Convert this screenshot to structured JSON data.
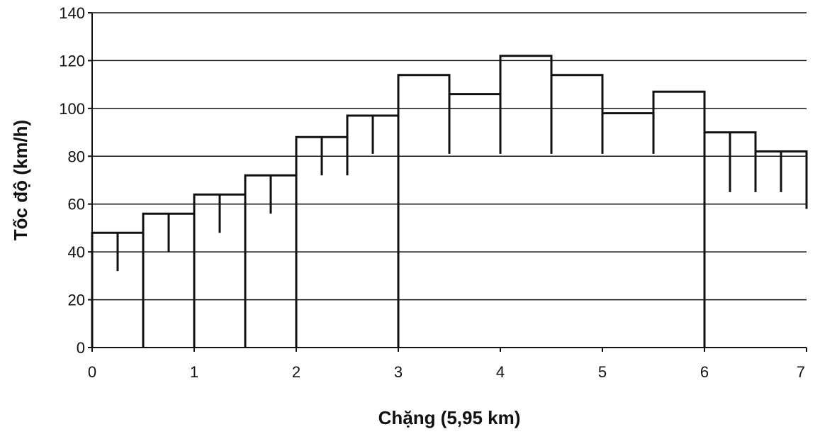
{
  "chart_data": {
    "type": "line",
    "title": "",
    "xlabel": "Chặng (5,95 km)",
    "ylabel": "Tốc độ (km/h)",
    "xlim": [
      0,
      7
    ],
    "ylim": [
      0,
      140
    ],
    "xticks": [
      0,
      1,
      2,
      3,
      4,
      5,
      6,
      7
    ],
    "yticks": [
      0,
      20,
      40,
      60,
      80,
      100,
      120,
      140
    ],
    "grid": "horizontal",
    "legend": "none",
    "series": [
      {
        "x": [
          0,
          0,
          0.25,
          0.25,
          0.25,
          0.5,
          0.5,
          0.5,
          0.75,
          0.75,
          0.75,
          1.0,
          1.0,
          1.0,
          1.25,
          1.25,
          1.25,
          1.5,
          1.5,
          1.5,
          1.75,
          1.75,
          1.75,
          2.0,
          2.0,
          2.0,
          2.25,
          2.25,
          2.25,
          2.5,
          2.5,
          2.5,
          2.75,
          2.75,
          2.75,
          3.0,
          3.0,
          3.0,
          3.5,
          3.5,
          3.5,
          4.0,
          4.0,
          4.0,
          4.5,
          4.5,
          4.5,
          5.0,
          5.0,
          5.0,
          5.5,
          5.5,
          5.5,
          6.0,
          6.0,
          6.0,
          6.25,
          6.25,
          6.25,
          6.5,
          6.5,
          6.5,
          6.75,
          6.75,
          6.75,
          7.0,
          7.0
        ],
        "y": [
          0,
          48,
          48,
          32,
          48,
          48,
          0,
          56,
          56,
          40,
          56,
          56,
          0,
          64,
          64,
          48,
          64,
          64,
          0,
          72,
          72,
          56,
          72,
          72,
          0,
          88,
          88,
          72,
          88,
          88,
          72,
          97,
          97,
          81,
          97,
          97,
          0,
          114,
          114,
          81,
          106,
          106,
          81,
          122,
          122,
          81,
          114,
          114,
          81,
          98,
          98,
          81,
          107,
          107,
          0,
          90,
          90,
          65,
          90,
          90,
          65,
          82,
          82,
          65,
          82,
          82,
          58
        ]
      }
    ]
  }
}
